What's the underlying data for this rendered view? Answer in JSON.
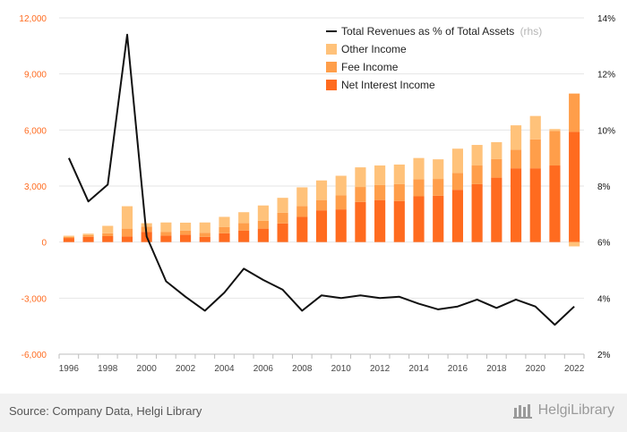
{
  "chart_data": {
    "type": "bar",
    "stacked": true,
    "x": [
      1996,
      1997,
      1998,
      1999,
      2000,
      2001,
      2002,
      2003,
      2004,
      2005,
      2006,
      2007,
      2008,
      2009,
      2010,
      2011,
      2012,
      2013,
      2014,
      2015,
      2016,
      2017,
      2018,
      2019,
      2020,
      2021,
      2022
    ],
    "x_tick_labels": [
      "1996",
      "1998",
      "2000",
      "2002",
      "2004",
      "2006",
      "2008",
      "2010",
      "2012",
      "2014",
      "2016",
      "2018",
      "2020",
      "2022"
    ],
    "ylim_left": [
      -6000,
      12000
    ],
    "y_ticks_left": [
      "12,000",
      "9,000",
      "6,000",
      "3,000",
      "0",
      "-3,000",
      "-6,000"
    ],
    "y_ticks_left_values": [
      12000,
      9000,
      6000,
      3000,
      0,
      -3000,
      -6000
    ],
    "ylim_right": [
      2,
      14
    ],
    "y_ticks_right": [
      "14%",
      "12%",
      "10%",
      "8%",
      "6%",
      "4%",
      "2%"
    ],
    "y_ticks_right_values": [
      14,
      12,
      10,
      8,
      6,
      4,
      2
    ],
    "grid": true,
    "legend_position": "top-right",
    "series": [
      {
        "name": "Net Interest Income",
        "color": "#ff6b1f",
        "axis": "left",
        "values": [
          220,
          280,
          320,
          300,
          550,
          350,
          400,
          280,
          470,
          620,
          720,
          1000,
          1350,
          1700,
          1750,
          2150,
          2250,
          2200,
          2450,
          2480,
          2800,
          3100,
          3450,
          3950,
          3950,
          4100,
          5900
        ]
      },
      {
        "name": "Fee Income",
        "color": "#ff9e4a",
        "axis": "left",
        "values": [
          60,
          90,
          150,
          420,
          280,
          200,
          220,
          220,
          330,
          400,
          420,
          570,
          580,
          550,
          750,
          800,
          800,
          900,
          920,
          900,
          900,
          1000,
          1000,
          1000,
          1550,
          1850,
          2050
        ]
      },
      {
        "name": "Other Income",
        "color": "#ffc27a",
        "axis": "left",
        "values": [
          60,
          80,
          400,
          1200,
          180,
          500,
          420,
          550,
          550,
          580,
          820,
          800,
          1000,
          1050,
          1050,
          1050,
          1050,
          1050,
          1130,
          1050,
          1300,
          1100,
          900,
          1300,
          1250,
          100,
          -230
        ]
      },
      {
        "name": "Total Revenues as % of Total Assets",
        "name_suffix": "(rhs)",
        "color": "#111111",
        "axis": "right",
        "type": "line",
        "values": [
          9.0,
          7.45,
          8.05,
          13.4,
          6.2,
          4.6,
          4.05,
          3.55,
          4.2,
          5.05,
          4.65,
          4.3,
          3.55,
          4.1,
          4.0,
          4.1,
          4.0,
          4.05,
          3.8,
          3.6,
          3.7,
          3.95,
          3.65,
          3.95,
          3.7,
          3.05,
          3.7
        ]
      }
    ]
  },
  "legend": {
    "line_label": "Total Revenues as % of Total Assets",
    "line_suffix": "(rhs)",
    "items": [
      "Other Income",
      "Fee Income",
      "Net Interest Income"
    ]
  },
  "footer": {
    "source": "Source: Company Data, Helgi Library",
    "brand": "HelgiLibrary"
  },
  "colors": {
    "left_axis_text": "#ff6b1f",
    "right_axis_text": "#111111",
    "grid": "#e6e6e6",
    "footer_bg": "#f1f1f1"
  }
}
